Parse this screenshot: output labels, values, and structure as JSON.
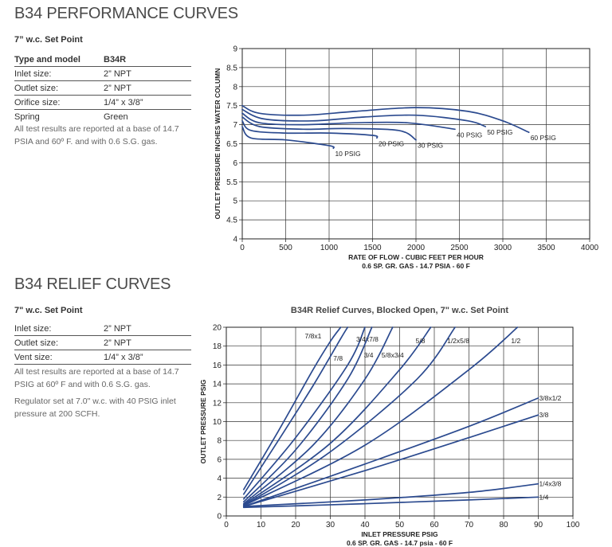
{
  "performance": {
    "title": "B34 PERFORMANCE CURVES",
    "setpoint": "7” w.c. Set Point",
    "specs": [
      {
        "key": "Type and model",
        "value": "B34R"
      },
      {
        "key": "Inlet size:",
        "value": "2” NPT"
      },
      {
        "key": "Outlet size:",
        "value": "2” NPT"
      },
      {
        "key": "Orifice size:",
        "value": "1/4” x 3/8”"
      },
      {
        "key": "Spring",
        "value": "Green"
      }
    ],
    "note": "All test results are reported at a base of 14.7 PSIA and 60º F. and with 0.6 S.G. gas."
  },
  "relief": {
    "title": "B34 RELIEF CURVES",
    "setpoint": "7\" w.c. Set Point",
    "specs": [
      {
        "key": "Inlet size:",
        "value": "2” NPT"
      },
      {
        "key": "Outlet size:",
        "value": "2” NPT"
      },
      {
        "key": "Vent size:",
        "value": "1/4” x 3/8”"
      }
    ],
    "note1": "All test results are reported at a base of 14.7 PSIG at 60º F and with 0.6 S.G. gas.",
    "note2": "Regulator set at 7.0\" w.c. with 40 PSIG inlet pressure at 200 SCFH."
  },
  "chart_data": [
    {
      "type": "line",
      "title": "",
      "xlabel": "RATE OF FLOW - CUBIC FEET PER HOUR",
      "xlabel2": "0.6 SP. GR. GAS - 14.7 PSIA - 60 F",
      "ylabel": "OUTLET PRESSURE INCHES WATER COLUMN",
      "xlim": [
        0,
        4000
      ],
      "ylim": [
        4,
        9
      ],
      "xticks": [
        0,
        500,
        1000,
        1500,
        2000,
        2500,
        3000,
        3500,
        4000
      ],
      "xtick_labels": [
        "0",
        "500",
        "1000",
        "1500",
        "2000",
        "2500",
        "3000",
        "3500",
        "4000"
      ],
      "yticks": [
        4,
        4.5,
        5,
        5.5,
        6,
        6.5,
        7,
        7.5,
        8,
        8.5,
        9
      ],
      "ytick_labels": [
        "4",
        "4.5",
        "5",
        "5.5",
        "6",
        "6.5",
        "7",
        "7.5",
        "8",
        "8.5",
        "9"
      ],
      "grid": true,
      "series": [
        {
          "name": "10 PSIG",
          "label": "10 PSIG",
          "x": [
            0,
            100,
            500,
            1000,
            1050
          ],
          "y": [
            6.95,
            6.65,
            6.6,
            6.45,
            6.38
          ]
        },
        {
          "name": "20 PSIG",
          "label": "20 PSIG",
          "x": [
            0,
            100,
            500,
            1000,
            1500,
            1550
          ],
          "y": [
            7.1,
            6.85,
            6.78,
            6.78,
            6.72,
            6.65
          ]
        },
        {
          "name": "30 PSIG",
          "label": "30 PSIG",
          "x": [
            0,
            200,
            700,
            1200,
            1800,
            2000
          ],
          "y": [
            7.2,
            6.95,
            6.88,
            6.9,
            6.85,
            6.6
          ]
        },
        {
          "name": "40 PSIG",
          "label": "40 PSIG",
          "x": [
            0,
            200,
            700,
            1300,
            1900,
            2450
          ],
          "y": [
            7.3,
            7.05,
            7.0,
            7.05,
            7.05,
            6.88
          ]
        },
        {
          "name": "50 PSIG",
          "label": "50 PSIG",
          "x": [
            0,
            250,
            800,
            1400,
            2000,
            2600,
            2800
          ],
          "y": [
            7.4,
            7.15,
            7.1,
            7.2,
            7.25,
            7.1,
            6.95
          ]
        },
        {
          "name": "60 PSIG",
          "label": "60 PSIG",
          "x": [
            0,
            200,
            700,
            1300,
            2000,
            2600,
            3000,
            3300
          ],
          "y": [
            7.5,
            7.3,
            7.25,
            7.35,
            7.45,
            7.35,
            7.1,
            6.8
          ]
        }
      ]
    },
    {
      "type": "line",
      "title": "B34R Relief Curves, Blocked Open, 7\" w.c. Set Point",
      "xlabel": "INLET PRESSURE PSIG",
      "xlabel2": "0.6 SP. GR. GAS - 14.7 psia - 60 F",
      "ylabel": "OUTLET PRESSURE PSIG",
      "xlim": [
        0,
        100
      ],
      "ylim": [
        0,
        20
      ],
      "xticks": [
        0,
        10,
        20,
        30,
        40,
        50,
        60,
        70,
        80,
        90,
        100
      ],
      "xtick_labels": [
        "0",
        "10",
        "20",
        "30",
        "40",
        "50",
        "60",
        "70",
        "80",
        "90",
        "100"
      ],
      "yticks": [
        0,
        2,
        4,
        6,
        8,
        10,
        12,
        14,
        16,
        18,
        20
      ],
      "ytick_labels": [
        "0",
        "2",
        "4",
        "6",
        "8",
        "10",
        "12",
        "14",
        "16",
        "18",
        "20"
      ],
      "grid": true,
      "series": [
        {
          "name": "7/8x1",
          "label": "7/8x1",
          "x": [
            5,
            15,
            25,
            30,
            33
          ],
          "y": [
            2.8,
            9,
            15.5,
            18.5,
            20
          ]
        },
        {
          "name": "7/8",
          "label": "7/8",
          "x": [
            5,
            15,
            25,
            33,
            35
          ],
          "y": [
            2.3,
            8,
            13.8,
            18.8,
            20
          ]
        },
        {
          "name": "3/4x7/8",
          "label": "3/4x7/8",
          "x": [
            5,
            20,
            35,
            40
          ],
          "y": [
            1.8,
            8.3,
            16,
            20
          ]
        },
        {
          "name": "3/4",
          "label": "3/4",
          "x": [
            5,
            20,
            35,
            42
          ],
          "y": [
            1.5,
            7,
            14.5,
            20
          ]
        },
        {
          "name": "5/8x3/4",
          "label": "5/8x3/4",
          "x": [
            5,
            25,
            40,
            48
          ],
          "y": [
            1.3,
            7.5,
            14.5,
            20
          ]
        },
        {
          "name": "5/8",
          "label": "5/8",
          "x": [
            5,
            30,
            50,
            59
          ],
          "y": [
            1.2,
            7.7,
            15.5,
            20
          ]
        },
        {
          "name": "1/2x5/8",
          "label": "1/2x5/8",
          "x": [
            5,
            30,
            55,
            66
          ],
          "y": [
            1.1,
            6.8,
            14.5,
            20
          ]
        },
        {
          "name": "1/2",
          "label": "1/2",
          "x": [
            5,
            40,
            70,
            84
          ],
          "y": [
            1.1,
            7.5,
            15.5,
            20
          ]
        },
        {
          "name": "3/8x1/2",
          "label": "3/8x1/2",
          "x": [
            5,
            40,
            70,
            90
          ],
          "y": [
            1.0,
            5.5,
            9.5,
            12.5
          ]
        },
        {
          "name": "3/8",
          "label": "3/8",
          "x": [
            5,
            40,
            70,
            90
          ],
          "y": [
            1.0,
            4.8,
            8.3,
            10.7
          ]
        },
        {
          "name": "1/4x3/8",
          "label": "1/4x3/8",
          "x": [
            5,
            40,
            70,
            90
          ],
          "y": [
            1.0,
            1.7,
            2.5,
            3.4
          ]
        },
        {
          "name": "1/4",
          "label": "1/4",
          "x": [
            5,
            40,
            70,
            90
          ],
          "y": [
            0.9,
            1.3,
            1.7,
            2.0
          ]
        }
      ]
    }
  ]
}
